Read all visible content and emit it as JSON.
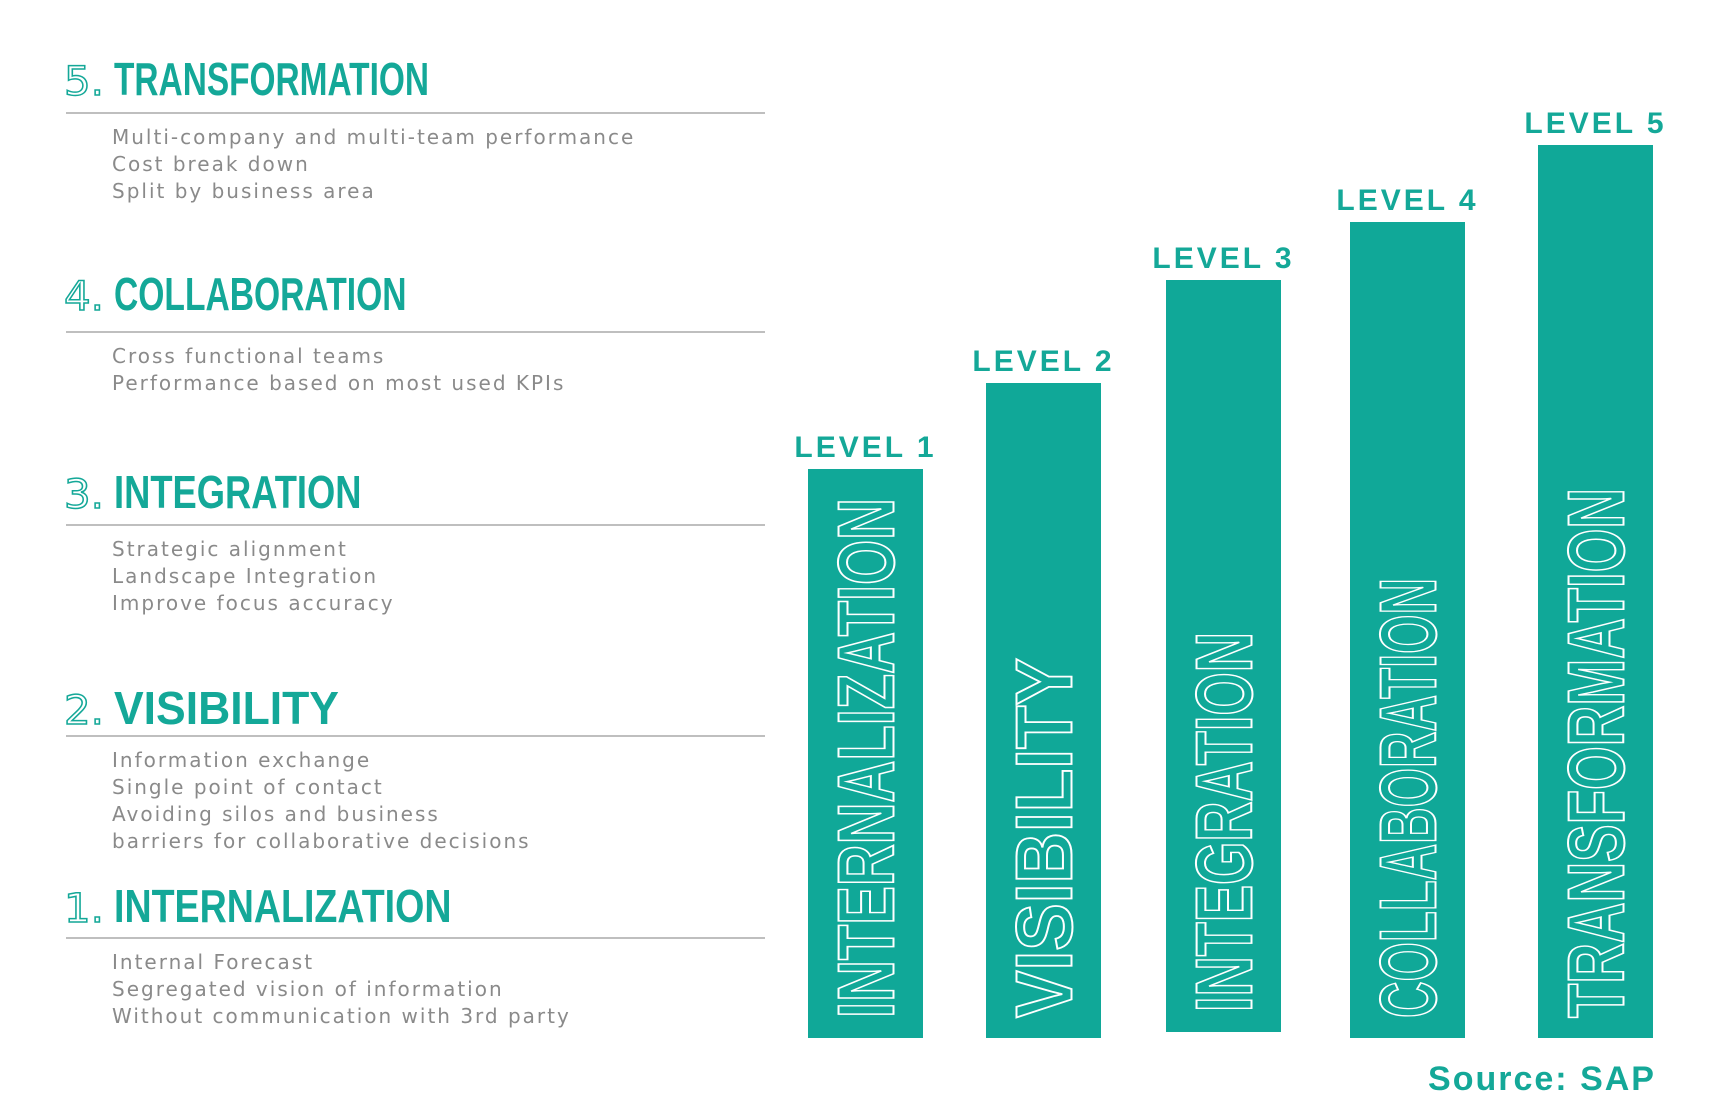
{
  "levels": [
    {
      "number": "5.",
      "title": "TRANSFORMATION",
      "items": [
        "Multi-company and multi-team performance",
        "Cost break down",
        "Split by business area"
      ]
    },
    {
      "number": "4.",
      "title": "COLLABORATION",
      "items": [
        "Cross functional teams",
        "Performance based on most used KPIs"
      ]
    },
    {
      "number": "3.",
      "title": "INTEGRATION",
      "items": [
        "Strategic alignment",
        "Landscape Integration",
        "Improve focus accuracy"
      ]
    },
    {
      "number": "2.",
      "title": "VISIBILITY",
      "items": [
        "Information exchange",
        "Single point of contact",
        "Avoiding silos and business",
        "barriers for collaborative decisions"
      ]
    },
    {
      "number": "1.",
      "title": "INTERNALIZATION",
      "items": [
        "Internal Forecast",
        "Segregated vision of information",
        "Without communication with 3rd party"
      ]
    }
  ],
  "bars": [
    {
      "label": "LEVEL 1",
      "name": "INTERNALIZATION"
    },
    {
      "label": "LEVEL 2",
      "name": "VISIBILITY"
    },
    {
      "label": "LEVEL 3",
      "name": "INTEGRATION"
    },
    {
      "label": "LEVEL 4",
      "name": "COLLABORATION"
    },
    {
      "label": "LEVEL 5",
      "name": "TRANSFORMATION"
    }
  ],
  "source": "Source: SAP"
}
